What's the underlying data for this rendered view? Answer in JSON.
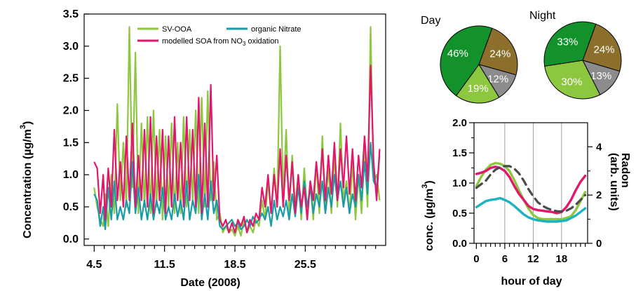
{
  "chart_data": [
    {
      "type": "line",
      "xlabel": "Date (2008)",
      "ylabel": "Concentration (µg/m",
      "ylabel_sup": "3",
      "ylabel_close": ")",
      "xlim": [
        3.5,
        33.5
      ],
      "ylim": [
        -0.1,
        3.5
      ],
      "x_ticks": [
        4.5,
        11.5,
        18.5,
        25.5
      ],
      "x_tick_labels": [
        "4.5",
        "11.5",
        "18.5",
        "25.5"
      ],
      "y_ticks": [
        0.0,
        0.5,
        1.0,
        1.5,
        2.0,
        2.5,
        3.0,
        3.5
      ],
      "y_tick_labels": [
        "0.0",
        "0.5",
        "1.0",
        "1.5",
        "2.0",
        "2.5",
        "3.0",
        "3.5"
      ],
      "legend": {
        "placement": "top",
        "entries": [
          {
            "label": "SV-OOA",
            "color": "#8dc63f"
          },
          {
            "label": "organic Nitrate",
            "color": "#1a9ba5"
          },
          {
            "label": "modelled SOA from NO",
            "sub": "3",
            "label_tail": " oxidation",
            "color": "#e2166b"
          }
        ]
      },
      "series": [
        {
          "color": "#8dc63f",
          "x": [
            4.5,
            4.8,
            5.1,
            5.4,
            5.6,
            5.9,
            6.2,
            6.5,
            6.8,
            7.1,
            7.4,
            7.7,
            8,
            8.3,
            8.6,
            8.9,
            9.2,
            9.5,
            9.8,
            10.1,
            10.4,
            10.7,
            11,
            11.3,
            11.6,
            11.9,
            12.2,
            12.5,
            12.8,
            13.1,
            13.4,
            13.7,
            14,
            14.3,
            14.6,
            14.9,
            15.2,
            15.5,
            15.8,
            16.1,
            16.4,
            16.7,
            17,
            17.3,
            17.6,
            17.9,
            18.2,
            18.5,
            18.8,
            19.1,
            19.4,
            19.7,
            20,
            20.3,
            20.6,
            20.9,
            21.2,
            21.5,
            21.8,
            22.1,
            22.4,
            22.7,
            23,
            23.3,
            23.6,
            23.9,
            24.2,
            24.5,
            24.8,
            25.1,
            25.4,
            25.7,
            26,
            26.3,
            26.6,
            26.9,
            27.2,
            27.5,
            27.8,
            28.1,
            28.4,
            28.7,
            29,
            29.3,
            29.6,
            29.9,
            30.2,
            30.5,
            30.8,
            31.1,
            31.4,
            31.7,
            32,
            32.3,
            32.6,
            32.9
          ],
          "y": [
            0.8,
            0.5,
            0.3,
            0.2,
            0.7,
            0.2,
            1.0,
            0.4,
            2.1,
            0.6,
            1.5,
            0.5,
            3.3,
            0.8,
            2.9,
            0.4,
            1.8,
            0.5,
            1.9,
            0.4,
            2.0,
            0.5,
            1.7,
            0.3,
            1.6,
            0.5,
            1.8,
            0.4,
            1.5,
            0.4,
            1.9,
            0.5,
            1.7,
            0.6,
            2.0,
            0.4,
            2.2,
            0.5,
            2.3,
            0.6,
            1.2,
            0.3,
            0.4,
            0.1,
            0.2,
            0.1,
            0.15,
            0.05,
            0.2,
            0.05,
            0.3,
            0.1,
            0.2,
            0.1,
            0.3,
            0.2,
            0.6,
            0.3,
            0.9,
            0.4,
            1.1,
            0.5,
            3.0,
            0.6,
            1.7,
            0.4,
            1.3,
            0.5,
            1.0,
            0.3,
            1.1,
            0.4,
            0.9,
            0.3,
            1.2,
            0.4,
            1.6,
            0.5,
            1.1,
            0.4,
            1.3,
            0.5,
            1.8,
            0.6,
            0.9,
            0.4,
            1.2,
            0.3,
            1.0,
            0.4,
            1.4,
            0.5,
            3.3,
            0.9,
            1.0,
            0.6
          ]
        },
        {
          "color": "#1a9ba5",
          "x": [
            4.5,
            4.8,
            5.1,
            5.4,
            5.6,
            5.9,
            6.2,
            6.5,
            6.8,
            7.1,
            7.4,
            7.7,
            8,
            8.3,
            8.6,
            8.9,
            9.2,
            9.5,
            9.8,
            10.1,
            10.4,
            10.7,
            11,
            11.3,
            11.6,
            11.9,
            12.2,
            12.5,
            12.8,
            13.1,
            13.4,
            13.7,
            14,
            14.3,
            14.6,
            14.9,
            15.2,
            15.5,
            15.8,
            16.1,
            16.4,
            16.7,
            17,
            17.3,
            17.6,
            17.9,
            18.2,
            18.5,
            18.8,
            19.1,
            19.4,
            19.7,
            20,
            20.3,
            20.6,
            20.9,
            21.2,
            21.5,
            21.8,
            22.1,
            22.4,
            22.7,
            23,
            23.3,
            23.6,
            23.9,
            24.2,
            24.5,
            24.8,
            25.1,
            25.4,
            25.7,
            26,
            26.3,
            26.6,
            26.9,
            27.2,
            27.5,
            27.8,
            28.1,
            28.4,
            28.7,
            29,
            29.3,
            29.6,
            29.9,
            30.2,
            30.5,
            30.8,
            31.1,
            31.4,
            31.7,
            32,
            32.3,
            32.6,
            32.9
          ],
          "y": [
            0.7,
            0.6,
            0.2,
            0.5,
            0.15,
            0.8,
            0.3,
            0.9,
            0.3,
            0.5,
            0.3,
            0.6,
            0.4,
            1.2,
            0.4,
            0.8,
            0.3,
            0.6,
            0.3,
            0.7,
            0.3,
            0.6,
            0.4,
            0.8,
            0.3,
            0.5,
            0.3,
            0.7,
            0.35,
            0.6,
            0.3,
            0.9,
            0.3,
            0.6,
            0.4,
            1.0,
            0.3,
            0.7,
            0.3,
            0.9,
            0.4,
            0.6,
            0.2,
            0.15,
            0.2,
            0.25,
            0.3,
            0.2,
            0.25,
            0.15,
            0.2,
            0.3,
            0.2,
            0.35,
            0.25,
            0.3,
            0.4,
            0.3,
            0.5,
            0.2,
            0.6,
            0.3,
            0.5,
            0.35,
            0.6,
            0.3,
            0.7,
            0.35,
            0.8,
            0.4,
            0.9,
            0.5,
            0.8,
            0.4,
            0.7,
            0.5,
            0.9,
            0.4,
            0.8,
            0.5,
            1.0,
            0.6,
            0.9,
            0.5,
            0.8,
            0.4,
            0.7,
            0.5,
            1.0,
            0.6,
            1.2,
            0.7,
            1.5,
            0.9,
            0.8,
            1.3
          ]
        },
        {
          "color": "#e2166b",
          "x": [
            4.5,
            4.8,
            5.1,
            5.4,
            5.6,
            5.9,
            6.2,
            6.5,
            6.8,
            7.1,
            7.4,
            7.7,
            8,
            8.3,
            8.6,
            8.9,
            9.2,
            9.5,
            9.8,
            10.1,
            10.4,
            10.7,
            11,
            11.3,
            11.6,
            11.9,
            12.2,
            12.5,
            12.8,
            13.1,
            13.4,
            13.7,
            14,
            14.3,
            14.6,
            14.9,
            15.2,
            15.5,
            15.8,
            16.1,
            16.4,
            16.7,
            17,
            17.3,
            17.6,
            17.9,
            18.2,
            18.5,
            18.8,
            19.1,
            19.4,
            19.7,
            20,
            20.3,
            20.6,
            20.9,
            21.2,
            21.5,
            21.8,
            22.1,
            22.4,
            22.7,
            23,
            23.3,
            23.6,
            23.9,
            24.2,
            24.5,
            24.8,
            25.1,
            25.4,
            25.7,
            26,
            26.3,
            26.6,
            26.9,
            27.2,
            27.5,
            27.8,
            28.1,
            28.4,
            28.7,
            29,
            29.3,
            29.6,
            29.9,
            30.2,
            30.5,
            30.8,
            31.1,
            31.4,
            31.7,
            32,
            32.3,
            32.6,
            32.9
          ],
          "y": [
            1.2,
            1.1,
            0.4,
            1.0,
            0.3,
            1.1,
            0.5,
            1.7,
            0.6,
            1.2,
            0.5,
            1.6,
            0.6,
            1.8,
            0.5,
            1.3,
            0.6,
            1.7,
            0.5,
            1.9,
            0.4,
            1.6,
            0.6,
            1.7,
            0.4,
            1.6,
            0.5,
            1.9,
            0.6,
            1.5,
            0.5,
            1.9,
            0.6,
            1.7,
            0.5,
            2.2,
            0.4,
            1.8,
            0.5,
            2.4,
            0.6,
            1.3,
            0.3,
            0.2,
            0.3,
            0.1,
            0.25,
            0.1,
            0.3,
            0.2,
            0.35,
            0.1,
            0.3,
            0.2,
            0.4,
            0.3,
            0.8,
            0.5,
            1.0,
            0.4,
            1.0,
            0.5,
            1.4,
            0.5,
            1.3,
            0.6,
            1.2,
            0.4,
            1.0,
            0.5,
            0.8,
            0.3,
            0.9,
            0.6,
            1.2,
            0.7,
            1.4,
            0.6,
            1.3,
            0.7,
            1.5,
            0.6,
            1.4,
            0.8,
            1.6,
            0.7,
            1.4,
            0.6,
            1.3,
            0.8,
            1.6,
            0.9,
            2.7,
            1.2,
            0.6,
            1.4
          ]
        }
      ]
    },
    {
      "type": "pie",
      "title": "Day",
      "slices": [
        {
          "value": 24,
          "label": "24%",
          "color": "#8b6f2b"
        },
        {
          "value": 12,
          "label": "12%",
          "color": "#8c8c8c"
        },
        {
          "value": 19,
          "label": "19%",
          "color": "#8dc63f"
        },
        {
          "value": 46,
          "label": "46%",
          "color": "#13922b"
        }
      ]
    },
    {
      "type": "pie",
      "title": "Night",
      "slices": [
        {
          "value": 24,
          "label": "24%",
          "color": "#8b6f2b"
        },
        {
          "value": 13,
          "label": "13%",
          "color": "#8c8c8c"
        },
        {
          "value": 30,
          "label": "30%",
          "color": "#8dc63f"
        },
        {
          "value": 33,
          "label": "33%",
          "color": "#13922b"
        }
      ]
    },
    {
      "type": "line",
      "xlabel": "hour of day",
      "ylabel": "conc. (µg/m",
      "ylabel_sup": "3",
      "ylabel_close": ")",
      "y2label_line1": "Radon",
      "y2label_line2": "(arb. units)",
      "xlim": [
        -0.5,
        23.5
      ],
      "ylim": [
        0,
        2.0
      ],
      "y2lim": [
        0,
        5
      ],
      "x_ticks": [
        0,
        6,
        12,
        18
      ],
      "x_tick_labels": [
        "0",
        "6",
        "12",
        "18"
      ],
      "y_ticks": [
        0.0,
        0.5,
        1.0,
        1.5,
        2.0
      ],
      "y_tick_labels": [
        "0.0",
        "0.5",
        "1.0",
        "1.5",
        "2.0"
      ],
      "y2_ticks": [
        0,
        2,
        4
      ],
      "y2_tick_labels": [
        "0",
        "2",
        "4"
      ],
      "vlines": [
        6,
        12,
        18
      ],
      "series": [
        {
          "color": "#8dc63f",
          "dash": false,
          "x": [
            0,
            1,
            2,
            3,
            4,
            5,
            6,
            7,
            8,
            9,
            10,
            11,
            12,
            13,
            14,
            15,
            16,
            17,
            18,
            19,
            20,
            21,
            22,
            23
          ],
          "y": [
            0.95,
            1.1,
            1.22,
            1.3,
            1.33,
            1.32,
            1.28,
            1.2,
            1.05,
            0.88,
            0.72,
            0.58,
            0.47,
            0.42,
            0.4,
            0.4,
            0.4,
            0.4,
            0.4,
            0.42,
            0.45,
            0.55,
            0.7,
            0.85
          ]
        },
        {
          "color": "#1ab3bf",
          "dash": false,
          "x": [
            0,
            1,
            2,
            3,
            4,
            5,
            6,
            7,
            8,
            9,
            10,
            11,
            12,
            13,
            14,
            15,
            16,
            17,
            18,
            19,
            20,
            21,
            22,
            23
          ],
          "y": [
            0.6,
            0.65,
            0.7,
            0.72,
            0.73,
            0.75,
            0.72,
            0.68,
            0.62,
            0.55,
            0.48,
            0.43,
            0.4,
            0.38,
            0.37,
            0.36,
            0.36,
            0.36,
            0.37,
            0.38,
            0.42,
            0.46,
            0.52,
            0.58
          ]
        },
        {
          "color": "#e2166b",
          "dash": false,
          "x": [
            0,
            1,
            2,
            3,
            4,
            5,
            6,
            7,
            8,
            9,
            10,
            11,
            12,
            13,
            14,
            15,
            16,
            17,
            18,
            19,
            20,
            21,
            22,
            23
          ],
          "y": [
            1.15,
            1.17,
            1.2,
            1.25,
            1.27,
            1.25,
            1.2,
            1.1,
            0.95,
            0.82,
            0.72,
            0.62,
            0.57,
            0.55,
            0.54,
            0.53,
            0.52,
            0.5,
            0.52,
            0.6,
            0.72,
            0.88,
            1.02,
            1.12
          ]
        },
        {
          "color": "#4a4a4a",
          "dash": true,
          "axis": "y2",
          "x": [
            0,
            1,
            2,
            3,
            4,
            5,
            6,
            7,
            8,
            9,
            10,
            11,
            12,
            13,
            14,
            15,
            16,
            17,
            18,
            19,
            20,
            21,
            22,
            23
          ],
          "y": [
            2.3,
            2.45,
            2.6,
            2.85,
            3.05,
            3.15,
            3.2,
            3.2,
            3.1,
            2.9,
            2.6,
            2.25,
            1.95,
            1.7,
            1.55,
            1.45,
            1.38,
            1.33,
            1.32,
            1.35,
            1.45,
            1.6,
            1.8,
            2.0
          ]
        }
      ]
    }
  ]
}
